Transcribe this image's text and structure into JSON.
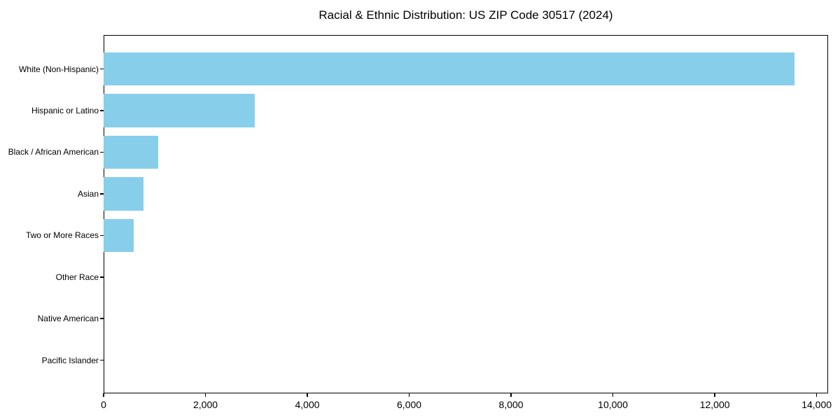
{
  "title": "Racial & Ethnic Distribution: US ZIP Code 30517 (2024)",
  "chart_data": {
    "type": "bar",
    "orientation": "horizontal",
    "title": "Racial & Ethnic Distribution: US ZIP Code 30517 (2024)",
    "categories": [
      "White (Non-Hispanic)",
      "Hispanic or Latino",
      "Black / African American",
      "Asian",
      "Two or More Races",
      "Other Race",
      "Native American",
      "Pacific Islander"
    ],
    "values": [
      13570,
      2965,
      1070,
      785,
      590,
      0,
      0,
      0
    ],
    "xlabel": "",
    "ylabel": "",
    "xlim": [
      0,
      14225
    ],
    "x_ticks": [
      0,
      2000,
      4000,
      6000,
      8000,
      10000,
      12000,
      14000
    ],
    "x_tick_labels": [
      "0",
      "2,000",
      "4,000",
      "6,000",
      "8,000",
      "10,000",
      "12,000",
      "14,000"
    ],
    "bar_color": "#87CEEB",
    "frame_color": "#000000",
    "text_color": "#000000",
    "background": "#FFFFFF",
    "grid": false,
    "legend": null
  }
}
